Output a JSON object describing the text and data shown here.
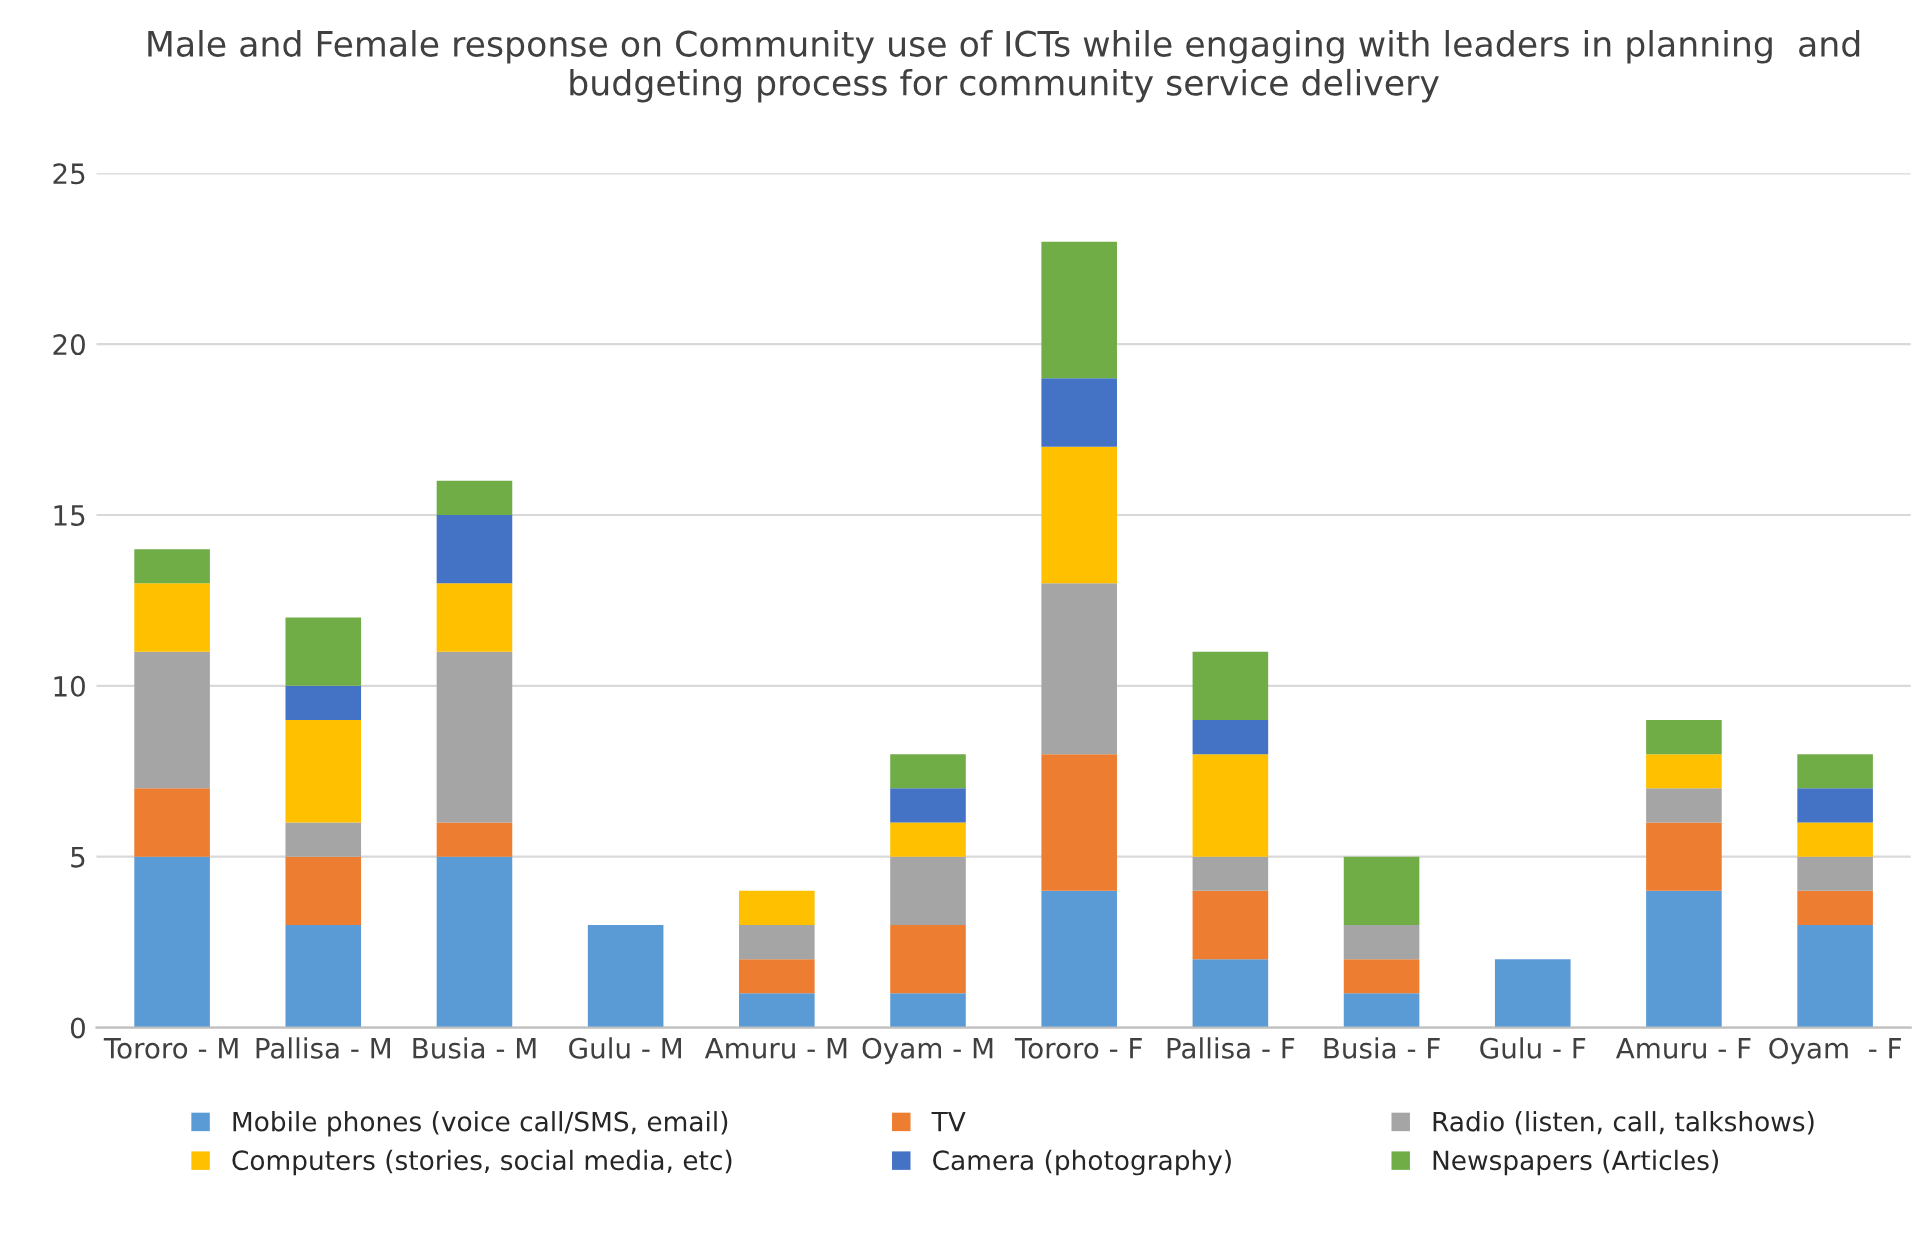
{
  "chart_data": {
    "type": "bar",
    "stacked": true,
    "title": "Male and Female response on Community use of ICTs while engaging with leaders in planning  and budgeting process for community service delivery",
    "categories": [
      "Tororo - M",
      "Pallisa - M",
      "Busia - M",
      "Gulu - M",
      "Amuru - M",
      "Oyam - M",
      "Tororo - F",
      "Pallisa - F",
      "Busia - F",
      "Gulu - F",
      "Amuru - F",
      "Oyam  - F"
    ],
    "series": [
      {
        "name": "Mobile phones (voice call/SMS, email)",
        "color": "#5b9bd5",
        "values": [
          5,
          3,
          5,
          3,
          1,
          1,
          4,
          2,
          1,
          2,
          4,
          3
        ]
      },
      {
        "name": "TV",
        "color": "#ed7d31",
        "values": [
          2,
          2,
          1,
          0,
          1,
          2,
          4,
          2,
          1,
          0,
          2,
          1
        ]
      },
      {
        "name": "Radio (listen, call, talkshows)",
        "color": "#a5a5a5",
        "values": [
          4,
          1,
          5,
          0,
          1,
          2,
          5,
          1,
          1,
          0,
          1,
          1
        ]
      },
      {
        "name": "Computers (stories, social media, etc)",
        "color": "#ffc000",
        "values": [
          2,
          3,
          2,
          0,
          1,
          1,
          4,
          3,
          0,
          0,
          1,
          1
        ]
      },
      {
        "name": "Camera (photography)",
        "color": "#4472c4",
        "values": [
          0,
          1,
          2,
          0,
          0,
          1,
          2,
          1,
          0,
          0,
          0,
          1
        ]
      },
      {
        "name": "Newspapers (Articles)",
        "color": "#70ad47",
        "values": [
          1,
          2,
          1,
          0,
          0,
          1,
          4,
          2,
          2,
          0,
          1,
          1
        ]
      }
    ],
    "ylim": [
      0,
      25
    ],
    "yticks": [
      0,
      5,
      10,
      15,
      20,
      25
    ],
    "grid": "y",
    "legend": "bottom"
  }
}
